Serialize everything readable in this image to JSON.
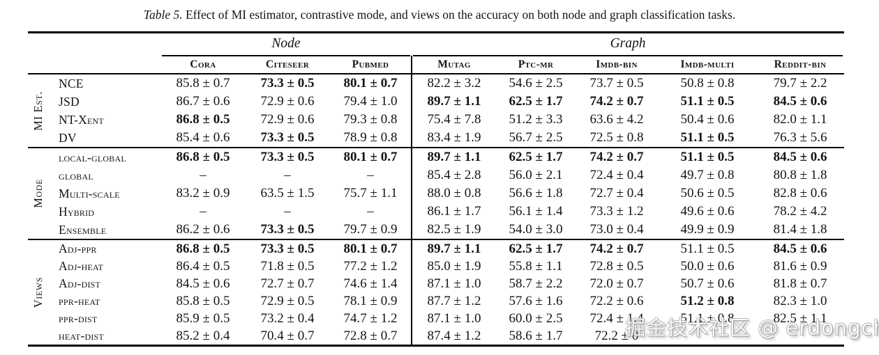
{
  "caption": {
    "label": "Table 5.",
    "text": "Effect of MI estimator, contrastive mode, and views on the accuracy on both node and graph classification tasks."
  },
  "table": {
    "groups": [
      {
        "label": "Node",
        "span": 3
      },
      {
        "label": "Graph",
        "span": 5
      }
    ],
    "columns": [
      "Cora",
      "Citeseer",
      "Pubmed",
      "Mutag",
      "Ptc-mr",
      "Imdb-bin",
      "Imdb-multi",
      "Reddit-bin"
    ],
    "column_keys": [
      "cora",
      "citeseer",
      "pubmed",
      "mutag",
      "ptc-mr",
      "imdb-bin",
      "imdb-multi",
      "reddit-bin"
    ],
    "sections": [
      {
        "key": "mi-est",
        "group": "MI Est.",
        "rows": [
          {
            "key": "nce",
            "label": "NCE",
            "cells": [
              "85.8 ± 0.7",
              "73.3 ± 0.5",
              "80.1 ± 0.7",
              "82.2 ± 3.2",
              "54.6 ± 2.5",
              "73.7 ± 0.5",
              "50.8 ± 0.8",
              "79.7 ± 2.2"
            ],
            "bold": [
              0,
              1,
              1,
              0,
              0,
              0,
              0,
              0
            ]
          },
          {
            "key": "jsd",
            "label": "JSD",
            "cells": [
              "86.7 ± 0.6",
              "72.9 ± 0.6",
              "79.4 ± 1.0",
              "89.7 ± 1.1",
              "62.5 ± 1.7",
              "74.2 ± 0.7",
              "51.1 ± 0.5",
              "84.5 ± 0.6"
            ],
            "bold": [
              0,
              0,
              0,
              1,
              1,
              1,
              1,
              1
            ]
          },
          {
            "key": "nt-xent",
            "label": "NT-Xent",
            "cells": [
              "86.8 ± 0.5",
              "72.9 ± 0.6",
              "79.3 ± 0.8",
              "75.4 ± 7.8",
              "51.2 ± 3.3",
              "63.6 ± 4.2",
              "50.4 ± 0.6",
              "82.0 ± 1.1"
            ],
            "bold": [
              1,
              0,
              0,
              0,
              0,
              0,
              0,
              0
            ]
          },
          {
            "key": "dv",
            "label": "DV",
            "cells": [
              "85.4 ± 0.6",
              "73.3 ± 0.5",
              "78.9 ± 0.8",
              "83.4 ± 1.9",
              "56.7 ± 2.5",
              "72.5 ± 0.8",
              "51.1 ± 0.5",
              "76.3 ± 5.6"
            ],
            "bold": [
              0,
              1,
              0,
              0,
              0,
              0,
              1,
              0
            ]
          }
        ]
      },
      {
        "key": "mode",
        "group": "Mode",
        "rows": [
          {
            "key": "local-global",
            "label": "local-global",
            "cells": [
              "86.8 ± 0.5",
              "73.3 ± 0.5",
              "80.1 ± 0.7",
              "89.7 ± 1.1",
              "62.5 ± 1.7",
              "74.2 ± 0.7",
              "51.1 ± 0.5",
              "84.5 ± 0.6"
            ],
            "bold": [
              1,
              1,
              1,
              1,
              1,
              1,
              1,
              1
            ]
          },
          {
            "key": "global",
            "label": "global",
            "cells": [
              "–",
              "–",
              "–",
              "85.4 ± 2.8",
              "56.0 ± 2.1",
              "72.4 ± 0.4",
              "49.7 ± 0.8",
              "80.8 ± 1.8"
            ],
            "bold": [
              0,
              0,
              0,
              0,
              0,
              0,
              0,
              0
            ]
          },
          {
            "key": "multi-scale",
            "label": "Multi-scale",
            "cells": [
              "83.2 ± 0.9",
              "63.5 ± 1.5",
              "75.7 ± 1.1",
              "88.0 ± 0.8",
              "56.6 ± 1.8",
              "72.7 ± 0.4",
              "50.6 ± 0.5",
              "82.8 ± 0.6"
            ],
            "bold": [
              0,
              0,
              0,
              0,
              0,
              0,
              0,
              0
            ]
          },
          {
            "key": "hybrid",
            "label": "Hybrid",
            "cells": [
              "–",
              "–",
              "–",
              "86.1 ± 1.7",
              "56.1 ± 1.4",
              "73.3 ± 1.2",
              "49.6 ± 0.6",
              "78.2 ± 4.2"
            ],
            "bold": [
              0,
              0,
              0,
              0,
              0,
              0,
              0,
              0
            ]
          },
          {
            "key": "ensemble",
            "label": "Ensemble",
            "cells": [
              "86.2 ± 0.6",
              "73.3 ± 0.5",
              "79.7 ± 0.9",
              "82.5 ± 1.9",
              "54.0 ± 3.0",
              "73.0 ± 0.4",
              "49.9 ± 0.9",
              "81.4 ± 1.8"
            ],
            "bold": [
              0,
              1,
              0,
              0,
              0,
              0,
              0,
              0
            ]
          }
        ]
      },
      {
        "key": "views",
        "group": "Views",
        "rows": [
          {
            "key": "adj-ppr",
            "label": "Adj-ppr",
            "cells": [
              "86.8 ± 0.5",
              "73.3 ± 0.5",
              "80.1 ± 0.7",
              "89.7 ± 1.1",
              "62.5 ± 1.7",
              "74.2 ± 0.7",
              "51.1 ± 0.5",
              "84.5 ± 0.6"
            ],
            "bold": [
              1,
              1,
              1,
              1,
              1,
              1,
              0,
              1
            ]
          },
          {
            "key": "adj-heat",
            "label": "Adj-heat",
            "cells": [
              "86.4 ± 0.5",
              "71.8 ± 0.5",
              "77.2 ± 1.2",
              "85.0 ± 1.9",
              "55.8 ± 1.1",
              "72.8 ± 0.5",
              "50.0 ± 0.6",
              "81.6 ± 0.9"
            ],
            "bold": [
              0,
              0,
              0,
              0,
              0,
              0,
              0,
              0
            ]
          },
          {
            "key": "adj-dist",
            "label": "Adj-dist",
            "cells": [
              "84.5 ± 0.6",
              "72.7 ± 0.7",
              "74.6 ± 1.4",
              "87.1 ± 1.0",
              "58.7 ± 2.2",
              "72.0 ± 0.7",
              "50.7 ± 0.6",
              "81.8 ± 0.7"
            ],
            "bold": [
              0,
              0,
              0,
              0,
              0,
              0,
              0,
              0
            ]
          },
          {
            "key": "ppr-heat",
            "label": "ppr-heat",
            "cells": [
              "85.8 ± 0.5",
              "72.9 ± 0.5",
              "78.1 ± 0.9",
              "87.7 ± 1.2",
              "57.6 ± 1.6",
              "72.2 ± 0.6",
              "51.2 ± 0.8",
              "82.3 ± 1.0"
            ],
            "bold": [
              0,
              0,
              0,
              0,
              0,
              0,
              1,
              0
            ]
          },
          {
            "key": "ppr-dist",
            "label": "ppr-dist",
            "cells": [
              "85.9 ± 0.5",
              "73.2 ± 0.4",
              "74.7 ± 1.2",
              "87.1 ± 1.0",
              "60.0 ± 2.5",
              "72.4 ± 1.4",
              "51.1 ± 0.8",
              "82.5 ± 1.1"
            ],
            "bold": [
              0,
              0,
              0,
              0,
              0,
              0,
              0,
              0
            ]
          },
          {
            "key": "heat-dist",
            "label": "heat-dist",
            "cells": [
              "85.2 ± 0.4",
              "70.4 ± 0.7",
              "72.8 ± 0.7",
              "87.4 ± 1.2",
              "58.6 ± 1.7",
              "72.2 ± 0",
              "",
              ""
            ],
            "bold": [
              0,
              0,
              0,
              0,
              0,
              0,
              0,
              0
            ]
          }
        ]
      }
    ]
  },
  "watermark": {
    "text": "掘金技术社区 @ erdongchen"
  }
}
